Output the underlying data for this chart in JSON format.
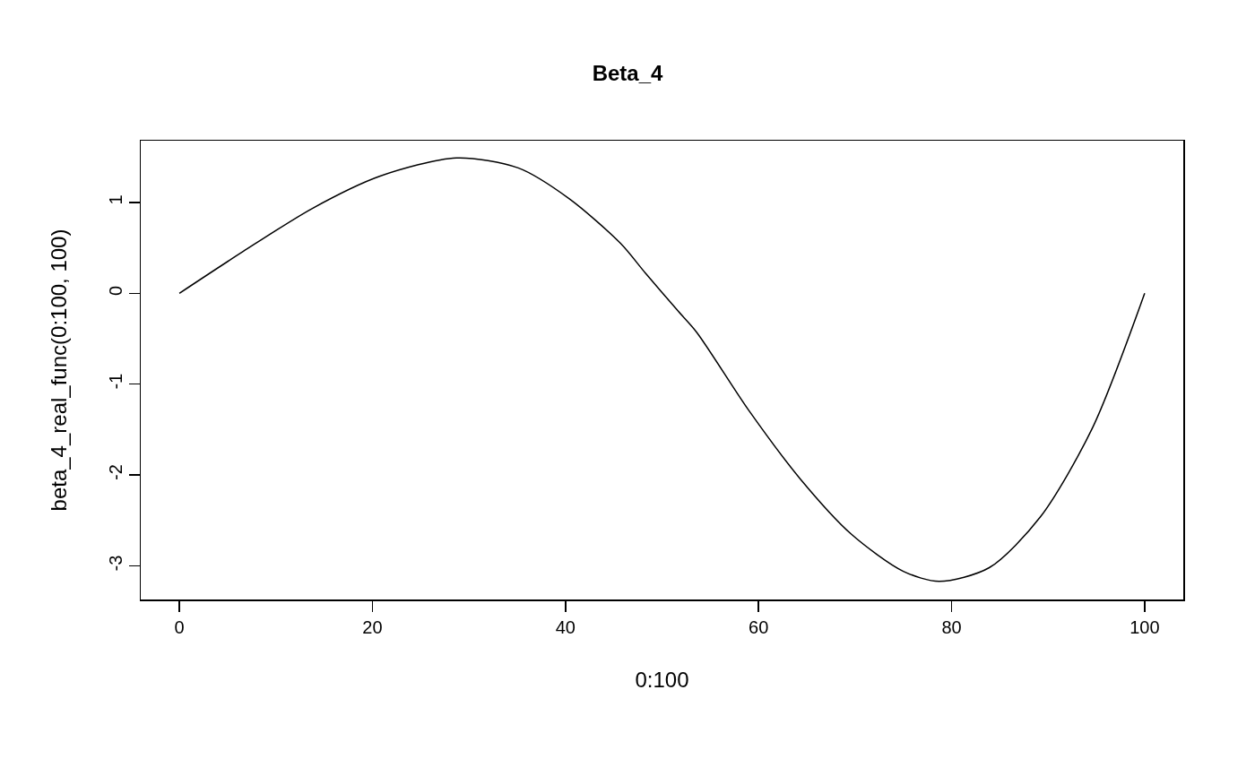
{
  "chart_data": {
    "type": "line",
    "title": "Beta_4",
    "xlabel": "0:100",
    "ylabel": "beta_4_real_func(0:100, 100)",
    "x": [
      0,
      6.6,
      13.7,
      20.8,
      28.7,
      35.1,
      40.4,
      45.7,
      48.3,
      51.7,
      53.6,
      59.0,
      64.3,
      69.6,
      75.0,
      78.7,
      83.9,
      89.2,
      94.6,
      100
    ],
    "series": [
      {
        "color": "#000000",
        "values": [
          0,
          0.46,
          0.93,
          1.29,
          1.49,
          1.38,
          1.04,
          0.55,
          0.22,
          -0.2,
          -0.43,
          -1.29,
          -2.04,
          -2.65,
          -3.06,
          -3.17,
          -3.02,
          -2.46,
          -1.48,
          0
        ]
      }
    ],
    "xlim": [
      -4,
      104
    ],
    "ylim": [
      -3.37,
      1.68
    ],
    "xticks": [
      0,
      20,
      40,
      60,
      80,
      100
    ],
    "yticks": [
      -3,
      -2,
      -1,
      0,
      1
    ],
    "grid": false,
    "marker": "none",
    "line_style": "solid"
  }
}
